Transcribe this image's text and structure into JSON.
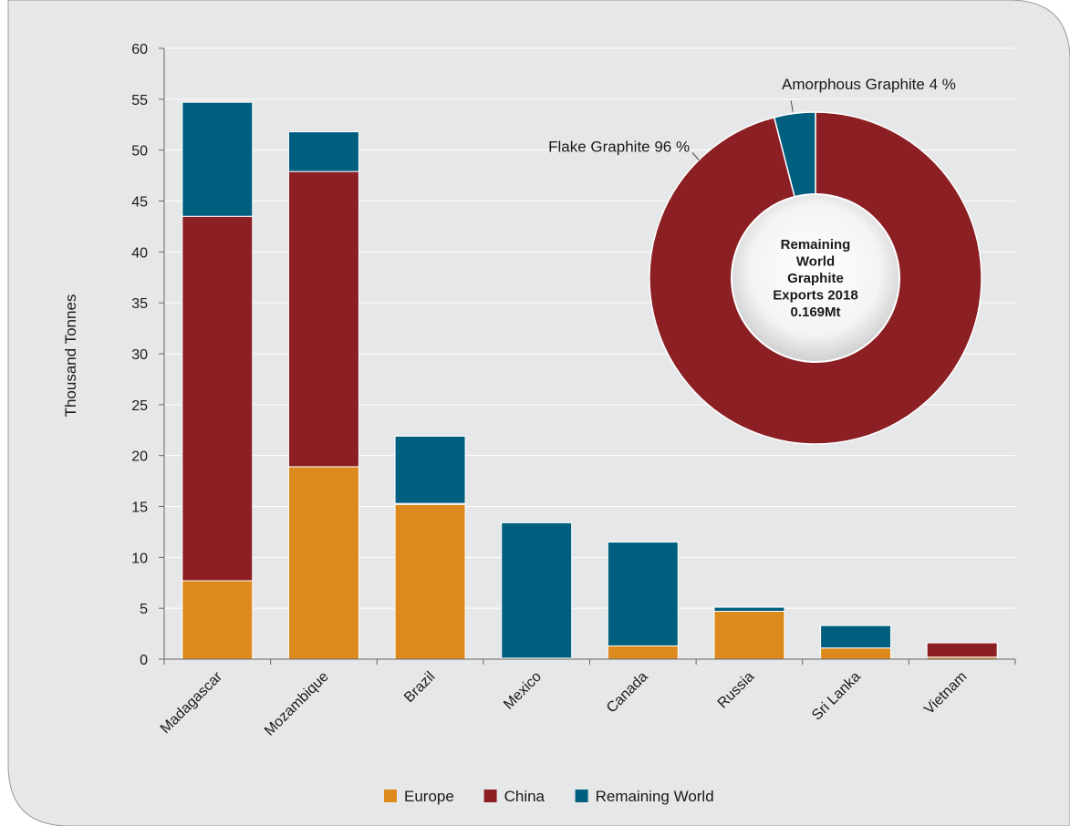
{
  "chart_data": [
    {
      "type": "bar",
      "stacked": true,
      "categories": [
        "Madagascar",
        "Mozambique",
        "Brazil",
        "Mexico",
        "Canada",
        "Russia",
        "Sri Lanka",
        "Vietnam"
      ],
      "series": [
        {
          "name": "Europe",
          "color": "#dc8a1d",
          "values": [
            7.7,
            18.9,
            15.2,
            0.1,
            1.3,
            4.7,
            1.1,
            0.2
          ]
        },
        {
          "name": "China",
          "color": "#8b1f24",
          "values": [
            35.8,
            29.0,
            0.1,
            0.0,
            0.0,
            0.0,
            0.0,
            1.4
          ]
        },
        {
          "name": "Remaining World",
          "color": "#005f7f",
          "values": [
            11.2,
            3.9,
            6.6,
            13.3,
            10.2,
            0.4,
            2.2,
            0.0
          ]
        }
      ],
      "ylabel": "Thousand Tonnes",
      "ylim": [
        0,
        60
      ],
      "yticks": [
        0,
        5,
        10,
        15,
        20,
        25,
        30,
        35,
        40,
        45,
        50,
        55,
        60
      ],
      "grid": true,
      "legend": "bottom"
    },
    {
      "type": "pie",
      "donut": true,
      "slices": [
        {
          "label": "Flake Graphite 96 %",
          "value": 96,
          "color": "#8b1f24"
        },
        {
          "label": "Amorphous Graphite 4 %",
          "value": 4,
          "color": "#005f7f"
        }
      ],
      "center_text": [
        "Remaining",
        "World",
        "Graphite",
        "Exports 2018",
        "0.169Mt"
      ]
    }
  ]
}
